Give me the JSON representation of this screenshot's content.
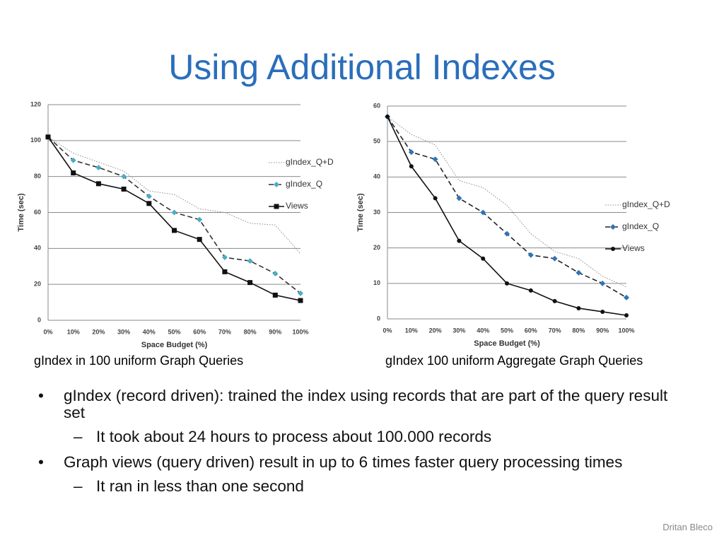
{
  "title": "Using Additional Indexes",
  "chart_data": [
    {
      "type": "line",
      "caption": "gIndex in 100 uniform Graph Queries",
      "x_label": "Space Budget (%)",
      "y_label": "Time (sec)",
      "categories": [
        "0%",
        "10%",
        "20%",
        "30%",
        "40%",
        "50%",
        "60%",
        "70%",
        "80%",
        "90%",
        "100%"
      ],
      "ylim": [
        0,
        120
      ],
      "yticks": [
        0,
        20,
        40,
        60,
        80,
        100,
        120
      ],
      "grid": true,
      "legend": "right",
      "series": [
        {
          "name": "gIndex_Q+D",
          "color": "#8c8c8c",
          "style": "dotted",
          "marker": "none",
          "values": [
            102,
            93,
            88,
            83,
            72,
            70,
            62,
            60,
            54,
            53,
            37
          ]
        },
        {
          "name": "gIndex_Q",
          "color": "#333333",
          "style": "dashed",
          "marker": "diamond",
          "marker_color": "#4bacc6",
          "values": [
            102,
            89,
            85,
            80,
            69,
            60,
            56,
            35,
            33,
            26,
            15
          ]
        },
        {
          "name": "Views",
          "color": "#111111",
          "style": "solid",
          "marker": "square",
          "marker_color": "#111111",
          "values": [
            102,
            82,
            76,
            73,
            65,
            50,
            45,
            27,
            21,
            14,
            11
          ]
        }
      ]
    },
    {
      "type": "line",
      "caption": "gIndex 100 uniform Aggregate Graph Queries",
      "x_label": "Space Budget (%)",
      "y_label": "Time (sec)",
      "categories": [
        "0%",
        "10%",
        "20%",
        "30%",
        "40%",
        "50%",
        "60%",
        "70%",
        "80%",
        "90%",
        "100%"
      ],
      "ylim": [
        0,
        60
      ],
      "yticks": [
        0,
        10,
        20,
        30,
        40,
        50,
        60
      ],
      "grid": true,
      "legend": "right",
      "series": [
        {
          "name": "gIndex_Q+D",
          "color": "#8c8c8c",
          "style": "dotted",
          "marker": "none",
          "values": [
            57,
            52,
            49,
            39,
            37,
            32,
            24,
            19,
            17,
            12,
            9
          ]
        },
        {
          "name": "gIndex_Q",
          "color": "#222222",
          "style": "dashed",
          "marker": "diamond",
          "marker_color": "#2e75b6",
          "values": [
            57,
            47,
            45,
            34,
            30,
            24,
            18,
            17,
            13,
            10,
            6
          ]
        },
        {
          "name": "Views",
          "color": "#111111",
          "style": "solid",
          "marker": "circle",
          "marker_color": "#111111",
          "values": [
            57,
            43,
            34,
            22,
            17,
            10,
            8,
            5,
            3,
            2,
            1
          ]
        }
      ]
    }
  ],
  "bullets": [
    {
      "text": "gIndex (record driven): trained the index using records that are part of the query result set",
      "sub": [
        "It took about 24 hours to process about 100.000 records"
      ]
    },
    {
      "text": "Graph views (query driven) result in up to 6 times faster query processing times",
      "sub": [
        "It ran in less than one second"
      ]
    }
  ],
  "footer": "Dritan Bleco"
}
